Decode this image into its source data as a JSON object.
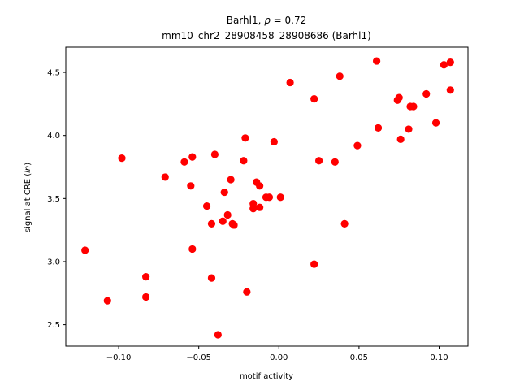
{
  "chart_data": {
    "type": "scatter",
    "title_line1_prefix": "Barhl1, ",
    "title_line1_rho": "ρ",
    "title_line1_suffix": " = 0.72",
    "title_line2": "mm10_chr2_28908458_28908686 (Barhl1)",
    "xlabel": "motif activity",
    "ylabel_prefix": "signal at CRE (",
    "ylabel_italic": "ln",
    "ylabel_suffix": ")",
    "xlim": [
      -0.133,
      0.118
    ],
    "ylim": [
      2.33,
      4.7
    ],
    "xticks": [
      -0.1,
      -0.05,
      0.0,
      0.05,
      0.1
    ],
    "xtick_labels": [
      "−0.10",
      "−0.05",
      "0.00",
      "0.05",
      "0.10"
    ],
    "yticks": [
      2.5,
      3.0,
      3.5,
      4.0,
      4.5
    ],
    "ytick_labels": [
      "2.5",
      "3.0",
      "3.5",
      "4.0",
      "4.5"
    ],
    "marker_color": "#ff0000",
    "points": [
      {
        "x": -0.121,
        "y": 3.09
      },
      {
        "x": -0.107,
        "y": 2.69
      },
      {
        "x": -0.098,
        "y": 3.82
      },
      {
        "x": -0.083,
        "y": 2.88
      },
      {
        "x": -0.083,
        "y": 2.72
      },
      {
        "x": -0.071,
        "y": 3.67
      },
      {
        "x": -0.059,
        "y": 3.79
      },
      {
        "x": -0.054,
        "y": 3.83
      },
      {
        "x": -0.055,
        "y": 3.6
      },
      {
        "x": -0.054,
        "y": 3.1
      },
      {
        "x": -0.045,
        "y": 3.44
      },
      {
        "x": -0.042,
        "y": 3.3
      },
      {
        "x": -0.042,
        "y": 2.87
      },
      {
        "x": -0.04,
        "y": 3.85
      },
      {
        "x": -0.038,
        "y": 2.42
      },
      {
        "x": -0.035,
        "y": 3.32
      },
      {
        "x": -0.034,
        "y": 3.55
      },
      {
        "x": -0.032,
        "y": 3.37
      },
      {
        "x": -0.03,
        "y": 3.65
      },
      {
        "x": -0.029,
        "y": 3.3
      },
      {
        "x": -0.028,
        "y": 3.29
      },
      {
        "x": -0.022,
        "y": 3.8
      },
      {
        "x": -0.021,
        "y": 3.98
      },
      {
        "x": -0.02,
        "y": 2.76
      },
      {
        "x": -0.016,
        "y": 3.46
      },
      {
        "x": -0.016,
        "y": 3.42
      },
      {
        "x": -0.014,
        "y": 3.63
      },
      {
        "x": -0.012,
        "y": 3.6
      },
      {
        "x": -0.012,
        "y": 3.43
      },
      {
        "x": -0.008,
        "y": 3.51
      },
      {
        "x": -0.006,
        "y": 3.51
      },
      {
        "x": -0.003,
        "y": 3.95
      },
      {
        "x": 0.001,
        "y": 3.51
      },
      {
        "x": 0.007,
        "y": 4.42
      },
      {
        "x": 0.022,
        "y": 4.29
      },
      {
        "x": 0.022,
        "y": 2.98
      },
      {
        "x": 0.025,
        "y": 3.8
      },
      {
        "x": 0.035,
        "y": 3.79
      },
      {
        "x": 0.038,
        "y": 4.47
      },
      {
        "x": 0.041,
        "y": 3.3
      },
      {
        "x": 0.049,
        "y": 3.92
      },
      {
        "x": 0.061,
        "y": 4.59
      },
      {
        "x": 0.062,
        "y": 4.06
      },
      {
        "x": 0.074,
        "y": 4.28
      },
      {
        "x": 0.075,
        "y": 4.3
      },
      {
        "x": 0.076,
        "y": 3.97
      },
      {
        "x": 0.081,
        "y": 4.05
      },
      {
        "x": 0.082,
        "y": 4.23
      },
      {
        "x": 0.084,
        "y": 4.23
      },
      {
        "x": 0.092,
        "y": 4.33
      },
      {
        "x": 0.098,
        "y": 4.1
      },
      {
        "x": 0.103,
        "y": 4.56
      },
      {
        "x": 0.107,
        "y": 4.58
      },
      {
        "x": 0.107,
        "y": 4.36
      }
    ]
  }
}
